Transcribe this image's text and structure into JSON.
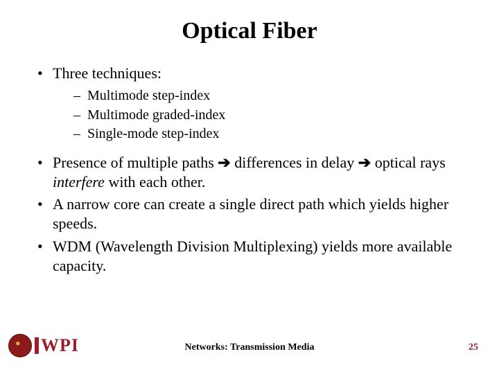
{
  "title": "Optical Fiber",
  "bullets": {
    "b1": "Three techniques:",
    "sub1": "Multimode step-index",
    "sub2": "Multimode graded-index",
    "sub3": "Single-mode step-index",
    "b2a": "Presence of multiple paths ",
    "b2b": " differences in delay ",
    "b2c": " optical rays ",
    "b2d": "interfere",
    "b2e": " with each other.",
    "b3": "A narrow core can create a single direct path which yields higher speeds.",
    "b4": "WDM (Wavelength Division Multiplexing)  yields more available capacity."
  },
  "arrow": "➔",
  "footer": {
    "center": "Networks: Transmission Media",
    "pageNumber": "25",
    "logoText": "WPI"
  },
  "colors": {
    "accent": "#a01c2b",
    "text": "#000000",
    "background": "#ffffff"
  }
}
